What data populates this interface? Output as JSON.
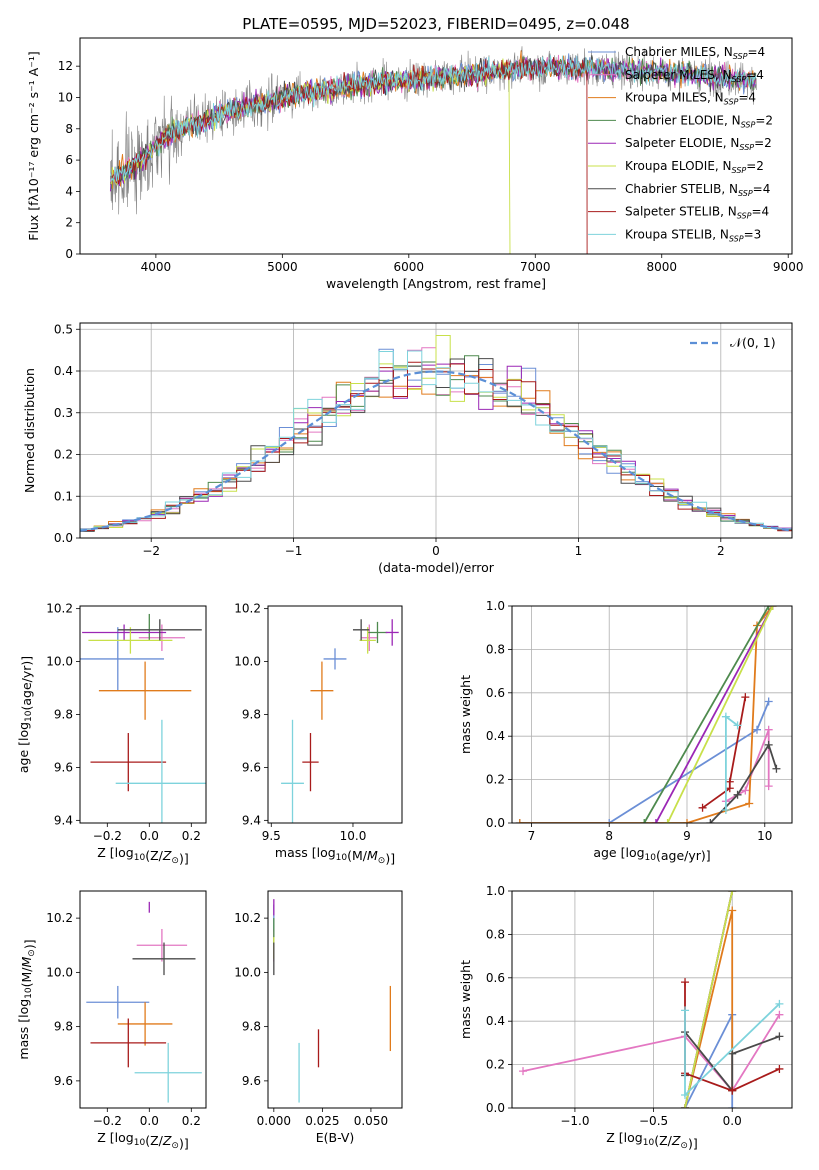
{
  "figure_title": "PLATE=0595, MJD=52023, FIBERID=0495, z=0.048",
  "models": [
    {
      "name": "Chabrier MILES",
      "nssp": "4",
      "color": "#6b8fd6"
    },
    {
      "name": "Salpeter MILES",
      "nssp": "4",
      "color": "#e377c2"
    },
    {
      "name": "Kroupa MILES",
      "nssp": "4",
      "color": "#e07b1c"
    },
    {
      "name": "Chabrier ELODIE",
      "nssp": "2",
      "color": "#4e8a4e"
    },
    {
      "name": "Salpeter ELODIE",
      "nssp": "2",
      "color": "#9b27b5"
    },
    {
      "name": "Kroupa ELODIE",
      "nssp": "2",
      "color": "#c8e04a"
    },
    {
      "name": "Chabrier STELIB",
      "nssp": "4",
      "color": "#4a4a4a"
    },
    {
      "name": "Salpeter STELIB",
      "nssp": "4",
      "color": "#a81b1b"
    },
    {
      "name": "Kroupa STELIB",
      "nssp": "3",
      "color": "#7ed3dc"
    }
  ],
  "chart_data": [
    {
      "id": "spectrum",
      "type": "line",
      "title": "PLATE=0595, MJD=52023, FIBERID=0495, z=0.048",
      "xlabel": "wavelength [Angstrom, rest frame]",
      "ylabel": "Flux [fλ10⁻¹⁷ erg cm⁻² s⁻¹ A⁻¹]",
      "xlim": [
        3400,
        9030
      ],
      "ylim": [
        0,
        13.8
      ],
      "xticks": [
        4000,
        5000,
        6000,
        7000,
        8000,
        9000
      ],
      "yticks": [
        0,
        2,
        4,
        6,
        8,
        10,
        12
      ],
      "legend": "top-right",
      "continuum": {
        "x": [
          3640,
          3700,
          3800,
          3900,
          4000,
          4100,
          4200,
          4400,
          4600,
          4800,
          5000,
          5200,
          5400,
          5600,
          5800,
          6000,
          6200,
          6400,
          6600,
          6800,
          7000,
          7200,
          7400,
          7600,
          7800,
          8000,
          8200,
          8400,
          8600,
          8750
        ],
        "y": [
          4.8,
          5.0,
          5.6,
          6.0,
          7.0,
          7.6,
          8.0,
          8.6,
          9.2,
          9.6,
          10.0,
          10.3,
          10.6,
          10.8,
          11.0,
          11.1,
          11.3,
          11.4,
          11.6,
          11.8,
          11.9,
          11.9,
          11.9,
          11.8,
          11.7,
          11.6,
          11.5,
          11.3,
          11.2,
          11.0
        ]
      },
      "data_end": 8750,
      "model_cutoffs": {
        "Salpeter STELIB": 7410,
        "Kroupa ELODIE": 6800
      }
    },
    {
      "id": "residuals",
      "type": "histogram",
      "xlabel": "(data-model)/error",
      "ylabel": "Normed distribution",
      "xlim": [
        -2.5,
        2.5
      ],
      "ylim": [
        0,
        0.515
      ],
      "xticks": [
        -2,
        -1,
        0,
        1,
        2
      ],
      "yticks": [
        0,
        0.1,
        0.2,
        0.3,
        0.4,
        0.5
      ],
      "bin_width": 0.1,
      "reference": "𝒩(0, 1)",
      "legend": "top-right",
      "grid": true
    },
    {
      "id": "age_vs_Z",
      "type": "errorbar",
      "xlabel": "Z [log10(Z/Z⊙)]",
      "ylabel": "age  [log10(age/yr)]",
      "xlim": [
        -0.33,
        0.27
      ],
      "ylim": [
        9.39,
        10.21
      ],
      "xticks": [
        -0.2,
        0.0,
        0.2
      ],
      "yticks": [
        9.4,
        9.6,
        9.8,
        10.0,
        10.2
      ],
      "points": [
        {
          "model": "Chabrier MILES",
          "x": -0.15,
          "xerr": 0.22,
          "y": 10.01,
          "yerr": 0.12
        },
        {
          "model": "Salpeter MILES",
          "x": 0.06,
          "xerr": 0.11,
          "y": 10.09,
          "yerr": 0.05
        },
        {
          "model": "Kroupa MILES",
          "x": -0.02,
          "xerr": 0.22,
          "y": 9.89,
          "yerr": 0.11
        },
        {
          "model": "Chabrier ELODIE",
          "x": 0.0,
          "xerr": 0.0,
          "y": 10.13,
          "yerr": 0.05
        },
        {
          "model": "Salpeter ELODIE",
          "x": -0.12,
          "xerr": 0.2,
          "y": 10.11,
          "yerr": 0.03
        },
        {
          "model": "Kroupa ELODIE",
          "x": -0.09,
          "xerr": 0.2,
          "y": 10.08,
          "yerr": 0.05
        },
        {
          "model": "Chabrier STELIB",
          "x": 0.05,
          "xerr": 0.2,
          "y": 10.12,
          "yerr": 0.04
        },
        {
          "model": "Salpeter STELIB",
          "x": -0.1,
          "xerr": 0.18,
          "y": 9.62,
          "yerr": 0.11
        },
        {
          "model": "Kroupa STELIB",
          "x": 0.06,
          "xerr": 0.22,
          "y": 9.54,
          "yerr": 0.24
        }
      ]
    },
    {
      "id": "age_vs_mass",
      "type": "errorbar",
      "xlabel": "mass [log10(M/M⊙)]",
      "ylabel": "",
      "xlim": [
        9.48,
        10.3
      ],
      "ylim": [
        9.39,
        10.21
      ],
      "xticks": [
        9.5,
        10.0
      ],
      "yticks": [
        9.4,
        9.6,
        9.8,
        10.0,
        10.2
      ],
      "points": [
        {
          "model": "Chabrier MILES",
          "x": 9.89,
          "xerr": 0.07,
          "y": 10.01,
          "yerr": 0.04
        },
        {
          "model": "Salpeter MILES",
          "x": 10.1,
          "xerr": 0.05,
          "y": 10.09,
          "yerr": 0.05
        },
        {
          "model": "Kroupa MILES",
          "x": 9.81,
          "xerr": 0.07,
          "y": 9.89,
          "yerr": 0.11
        },
        {
          "model": "Chabrier ELODIE",
          "x": 10.15,
          "xerr": 0.06,
          "y": 10.11,
          "yerr": 0.04
        },
        {
          "model": "Salpeter ELODIE",
          "x": 10.24,
          "xerr": 0.04,
          "y": 10.11,
          "yerr": 0.05
        },
        {
          "model": "Kroupa ELODIE",
          "x": 10.09,
          "xerr": 0.05,
          "y": 10.08,
          "yerr": 0.05
        },
        {
          "model": "Chabrier STELIB",
          "x": 10.05,
          "xerr": 0.05,
          "y": 10.12,
          "yerr": 0.04
        },
        {
          "model": "Salpeter STELIB",
          "x": 9.74,
          "xerr": 0.05,
          "y": 9.62,
          "yerr": 0.11
        },
        {
          "model": "Kroupa STELIB",
          "x": 9.63,
          "xerr": 0.07,
          "y": 9.54,
          "yerr": 0.24
        }
      ]
    },
    {
      "id": "mass_weight_vs_age",
      "type": "line",
      "xlabel": "age  [log10(age/yr)]",
      "ylabel": "mass weight",
      "xlim": [
        6.75,
        10.35
      ],
      "ylim": [
        0,
        1.0
      ],
      "xticks": [
        7,
        8,
        9,
        10
      ],
      "yticks": [
        0.0,
        0.2,
        0.4,
        0.6,
        0.8,
        1.0
      ],
      "grid": true,
      "series": [
        {
          "model": "Chabrier MILES",
          "x": [
            6.85,
            8.0,
            9.9,
            10.05
          ],
          "y": [
            0.0,
            0.0,
            0.43,
            0.56
          ]
        },
        {
          "model": "Salpeter MILES",
          "x": [
            9.5,
            9.75,
            10.05,
            10.05
          ],
          "y": [
            0.1,
            0.15,
            0.43,
            0.17
          ]
        },
        {
          "model": "Kroupa MILES",
          "x": [
            6.85,
            9.0,
            9.8,
            9.9,
            10.1
          ],
          "y": [
            0.0,
            0.0,
            0.09,
            0.91,
            1.0
          ]
        },
        {
          "model": "Chabrier ELODIE",
          "x": [
            8.45,
            10.05
          ],
          "y": [
            0.0,
            1.0
          ]
        },
        {
          "model": "Salpeter ELODIE",
          "x": [
            8.6,
            10.1
          ],
          "y": [
            0.0,
            1.0
          ]
        },
        {
          "model": "Kroupa ELODIE",
          "x": [
            8.75,
            10.1
          ],
          "y": [
            0.0,
            1.0
          ]
        },
        {
          "model": "Chabrier STELIB",
          "x": [
            9.3,
            9.65,
            10.05,
            10.15
          ],
          "y": [
            0.0,
            0.13,
            0.36,
            0.25
          ]
        },
        {
          "model": "Salpeter STELIB",
          "x": [
            9.2,
            9.55,
            9.55,
            9.75
          ],
          "y": [
            0.07,
            0.16,
            0.19,
            0.58
          ]
        },
        {
          "model": "Kroupa STELIB",
          "x": [
            9.5,
            9.5,
            9.65
          ],
          "y": [
            0.06,
            0.49,
            0.45
          ]
        }
      ]
    },
    {
      "id": "mass_vs_Z",
      "type": "errorbar",
      "xlabel": "Z [log10(Z/Z⊙)]",
      "ylabel": "mass [log10(M/M⊙)]",
      "xlim": [
        -0.33,
        0.27
      ],
      "ylim": [
        9.5,
        10.3
      ],
      "xticks": [
        -0.2,
        0.0,
        0.2
      ],
      "yticks": [
        9.6,
        9.8,
        10.0,
        10.2
      ],
      "points": [
        {
          "model": "Chabrier MILES",
          "x": -0.15,
          "xerr": 0.15,
          "y": 9.89,
          "yerr": 0.06
        },
        {
          "model": "Salpeter MILES",
          "x": 0.06,
          "xerr": 0.12,
          "y": 10.1,
          "yerr": 0.06
        },
        {
          "model": "Kroupa MILES",
          "x": -0.02,
          "xerr": 0.13,
          "y": 9.81,
          "yerr": 0.08
        },
        {
          "model": "Chabrier ELODIE",
          "x": -0.01,
          "xerr": 0.0,
          "y": 10.15,
          "yerr": 0.0
        },
        {
          "model": "Salpeter ELODIE",
          "x": 0.0,
          "xerr": 0.0,
          "y": 10.24,
          "yerr": 0.02
        },
        {
          "model": "Kroupa ELODIE",
          "x": 0.0,
          "xerr": 0.0,
          "y": 10.09,
          "yerr": 0.0
        },
        {
          "model": "Chabrier STELIB",
          "x": 0.07,
          "xerr": 0.15,
          "y": 10.05,
          "yerr": 0.06
        },
        {
          "model": "Salpeter STELIB",
          "x": -0.1,
          "xerr": 0.18,
          "y": 9.74,
          "yerr": 0.09
        },
        {
          "model": "Kroupa STELIB",
          "x": 0.09,
          "xerr": 0.16,
          "y": 9.63,
          "yerr": 0.11
        }
      ]
    },
    {
      "id": "mass_vs_ebv",
      "type": "errorbar",
      "xlabel": "E(B-V)",
      "ylabel": "",
      "xlim": [
        -0.003,
        0.066
      ],
      "ylim": [
        9.5,
        10.3
      ],
      "xticks": [
        0.0,
        0.025,
        0.05
      ],
      "yticks": [
        9.6,
        9.8,
        10.0,
        10.2
      ],
      "points": [
        {
          "model": "Chabrier MILES",
          "x": 0.0,
          "xerr": 0.0,
          "y": 10.2,
          "yerr": 0.05
        },
        {
          "model": "Salpeter MILES",
          "x": 0.0,
          "xerr": 0.0,
          "y": 10.1,
          "yerr": 0.06
        },
        {
          "model": "Kroupa MILES",
          "x": 0.06,
          "xerr": 0.0,
          "y": 9.83,
          "yerr": 0.12
        },
        {
          "model": "Chabrier ELODIE",
          "x": 0.0,
          "xerr": 0.0,
          "y": 10.15,
          "yerr": 0.05
        },
        {
          "model": "Salpeter ELODIE",
          "x": 0.0,
          "xerr": 0.0,
          "y": 10.24,
          "yerr": 0.03
        },
        {
          "model": "Kroupa ELODIE",
          "x": 0.0,
          "xerr": 0.0,
          "y": 10.09,
          "yerr": 0.04
        },
        {
          "model": "Chabrier STELIB",
          "x": 0.0,
          "xerr": 0.0,
          "y": 10.05,
          "yerr": 0.06
        },
        {
          "model": "Salpeter STELIB",
          "x": 0.023,
          "xerr": 0.0,
          "y": 9.72,
          "yerr": 0.07
        },
        {
          "model": "Kroupa STELIB",
          "x": 0.013,
          "xerr": 0.0,
          "y": 9.63,
          "yerr": 0.11
        }
      ]
    },
    {
      "id": "mass_weight_vs_Z",
      "type": "line",
      "xlabel": "Z [log10(Z/Z⊙)]",
      "ylabel": "mass weight",
      "xlim": [
        -1.4,
        0.38
      ],
      "ylim": [
        0,
        1.0
      ],
      "xticks": [
        -1.0,
        -0.5,
        0.0
      ],
      "yticks": [
        0.0,
        0.2,
        0.4,
        0.6,
        0.8,
        1.0
      ],
      "grid": true,
      "series": [
        {
          "model": "Chabrier MILES",
          "x": [
            -0.3,
            0.0,
            0.0
          ],
          "y": [
            0.0,
            0.43,
            0.0
          ]
        },
        {
          "model": "Salpeter MILES",
          "x": [
            -1.33,
            -0.3,
            0.0,
            0.3
          ],
          "y": [
            0.17,
            0.33,
            0.08,
            0.43
          ]
        },
        {
          "model": "Kroupa MILES",
          "x": [
            -0.3,
            0.0,
            0.0
          ],
          "y": [
            0.0,
            0.91,
            0.08
          ]
        },
        {
          "model": "Chabrier ELODIE",
          "x": [
            -0.3,
            0.0
          ],
          "y": [
            0.0,
            1.0
          ]
        },
        {
          "model": "Salpeter ELODIE",
          "x": [
            -0.3,
            0.0
          ],
          "y": [
            0.0,
            1.0
          ]
        },
        {
          "model": "Kroupa ELODIE",
          "x": [
            -0.3,
            0.0
          ],
          "y": [
            0.0,
            1.0
          ]
        },
        {
          "model": "Chabrier STELIB",
          "x": [
            -0.3,
            -0.3,
            0.0,
            0.0,
            0.3
          ],
          "y": [
            0.15,
            0.35,
            0.08,
            0.25,
            0.33
          ]
        },
        {
          "model": "Salpeter STELIB",
          "x": [
            -0.3,
            -0.3,
            0.0,
            0.3
          ],
          "y": [
            0.58,
            0.16,
            0.08,
            0.18
          ]
        },
        {
          "model": "Kroupa STELIB",
          "x": [
            -0.3,
            -0.3,
            0.3
          ],
          "y": [
            0.45,
            0.06,
            0.48
          ]
        }
      ]
    }
  ]
}
